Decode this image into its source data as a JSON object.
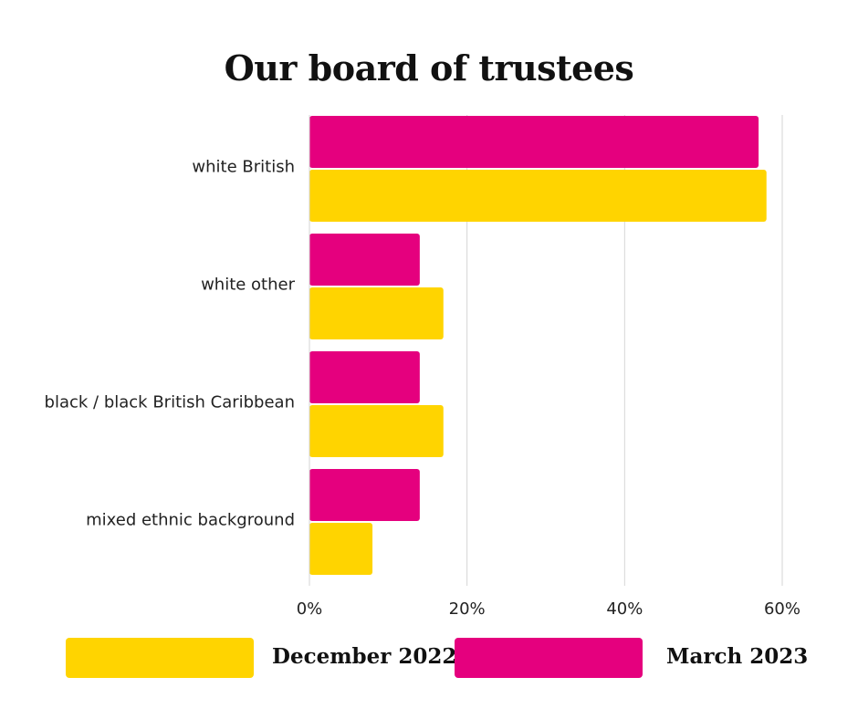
{
  "chart_data": {
    "type": "bar",
    "orientation": "horizontal",
    "title": "Our board of trustees",
    "categories": [
      "white British",
      "white other",
      "black / black British Caribbean",
      "mixed ethnic background"
    ],
    "series": [
      {
        "name": "March 2023",
        "color": "#E5007E",
        "values": [
          57,
          14,
          14,
          14
        ]
      },
      {
        "name": "December 2022",
        "color": "#FFD400",
        "values": [
          58,
          17,
          17,
          8
        ]
      }
    ],
    "xlim": [
      0,
      60
    ],
    "xticks": [
      0,
      20,
      40,
      60
    ],
    "xtick_labels": [
      "0%",
      "20%",
      "40%",
      "60%"
    ],
    "grid": true,
    "legend": {
      "placement": "bottom",
      "entries": [
        {
          "label": "December 2022",
          "color": "#FFD400"
        },
        {
          "label": "March 2023",
          "color": "#E5007E"
        }
      ]
    }
  }
}
